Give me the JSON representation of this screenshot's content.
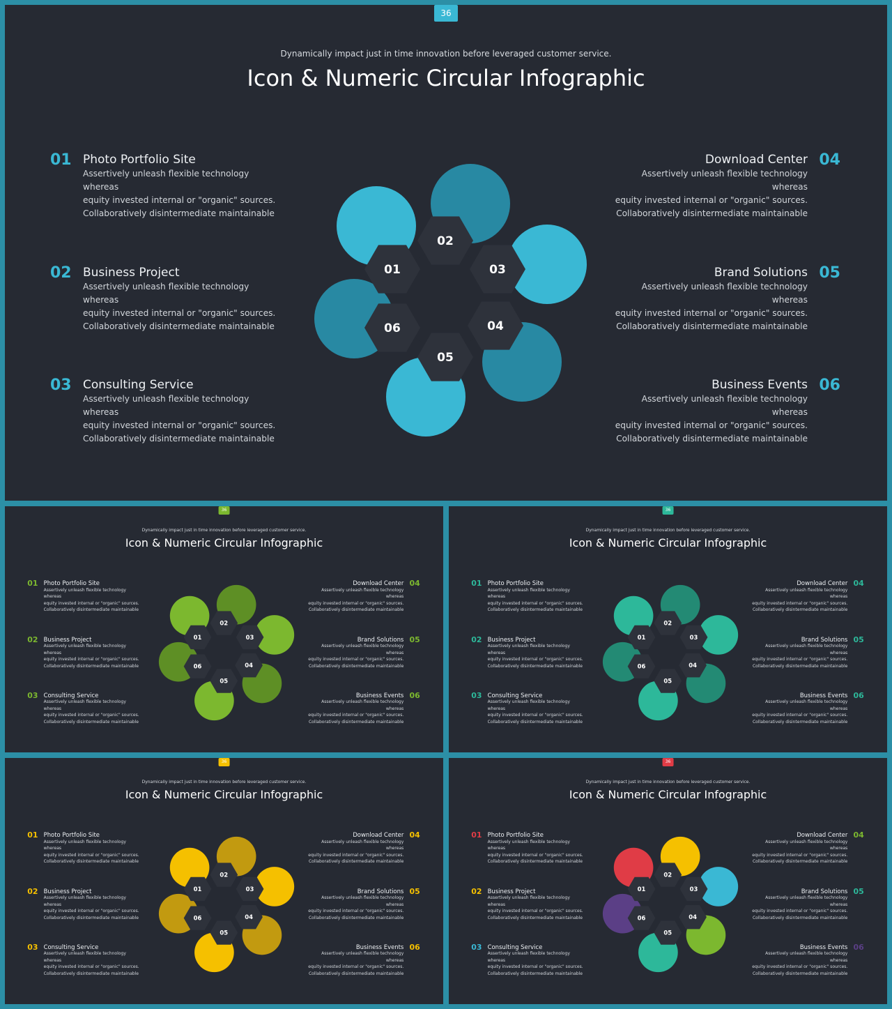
{
  "subtitle": "Dynamically impact just in time innovation  before leveraged customer service.",
  "title": "Icon & Numeric Circular Infographic",
  "items": [
    {
      "num": "01",
      "title": "Photo Portfolio Site",
      "desc": "Assertively unleash flexible technology whereas\nequity invested internal or \"organic\" sources.\nCollaboratively disintermediate maintainable"
    },
    {
      "num": "02",
      "title": "Business Project",
      "desc": "Assertively unleash flexible technology whereas\nequity invested internal or \"organic\" sources.\nCollaboratively disintermediate maintainable"
    },
    {
      "num": "03",
      "title": "Consulting Service",
      "desc": "Assertively unleash flexible technology whereas\nequity invested internal or \"organic\" sources.\nCollaboratively disintermediate maintainable"
    },
    {
      "num": "04",
      "title": "Download Center",
      "desc": "Assertively unleash flexible technology whereas\nequity invested internal or \"organic\" sources.\nCollaboratively disintermediate maintainable"
    },
    {
      "num": "05",
      "title": "Brand Solutions",
      "desc": "Assertively unleash flexible technology whereas\nequity invested internal or \"organic\" sources.\nCollaboratively disintermediate maintainable"
    },
    {
      "num": "06",
      "title": "Business Events",
      "desc": "Assertively unleash flexible technology whereas\nequity invested internal or \"organic\" sources.\nCollaboratively disintermediate maintainable"
    }
  ],
  "slides": [
    {
      "variant": "blue",
      "page_number": "36",
      "badge_color": "#3ab8d4",
      "petal_colors": [
        "#3ab8d4",
        "#2889a3",
        "#3ab8d4",
        "#2889a3",
        "#3ab8d4",
        "#2889a3"
      ],
      "number_colors": [
        "#3ab8d4",
        "#3ab8d4",
        "#3ab8d4",
        "#3ab8d4",
        "#3ab8d4",
        "#3ab8d4"
      ]
    },
    {
      "variant": "green",
      "page_number": "36",
      "badge_color": "#7cb82f",
      "petal_colors": [
        "#7cb82f",
        "#5e8f25",
        "#7cb82f",
        "#5e8f25",
        "#7cb82f",
        "#5e8f25"
      ],
      "number_colors": [
        "#7cb82f",
        "#7cb82f",
        "#7cb82f",
        "#7cb82f",
        "#7cb82f",
        "#7cb82f"
      ]
    },
    {
      "variant": "teal",
      "page_number": "36",
      "badge_color": "#2db89a",
      "petal_colors": [
        "#2db89a",
        "#238a74",
        "#2db89a",
        "#238a74",
        "#2db89a",
        "#238a74"
      ],
      "number_colors": [
        "#2db89a",
        "#2db89a",
        "#2db89a",
        "#2db89a",
        "#2db89a",
        "#2db89a"
      ]
    },
    {
      "variant": "yellow",
      "page_number": "36",
      "badge_color": "#f5c000",
      "petal_colors": [
        "#f5c000",
        "#c29a10",
        "#f5c000",
        "#c29a10",
        "#f5c000",
        "#c29a10"
      ],
      "number_colors": [
        "#f5c000",
        "#f5c000",
        "#f5c000",
        "#f5c000",
        "#f5c000",
        "#f5c000"
      ]
    },
    {
      "variant": "multicolor",
      "page_number": "36",
      "badge_color": "#e03c46",
      "petal_colors": [
        "#e03c46",
        "#f5c000",
        "#3ab8d4",
        "#7cb82f",
        "#2db89a",
        "#5b3f86"
      ],
      "number_colors": [
        "#e03c46",
        "#f5c000",
        "#3ab8d4",
        "#7cb82f",
        "#2db89a",
        "#5b3f86"
      ]
    }
  ],
  "icons": {
    "hex_fill": "#2e323b",
    "slide_bg": "#262a33"
  }
}
